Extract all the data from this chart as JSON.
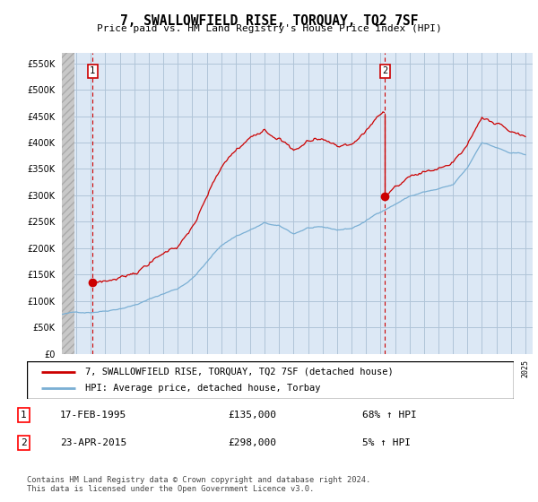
{
  "title": "7, SWALLOWFIELD RISE, TORQUAY, TQ2 7SF",
  "subtitle": "Price paid vs. HM Land Registry's House Price Index (HPI)",
  "legend_line1": "7, SWALLOWFIELD RISE, TORQUAY, TQ2 7SF (detached house)",
  "legend_line2": "HPI: Average price, detached house, Torbay",
  "annotation1_date": "17-FEB-1995",
  "annotation1_price": "£135,000",
  "annotation1_hpi": "68% ↑ HPI",
  "annotation2_date": "23-APR-2015",
  "annotation2_price": "£298,000",
  "annotation2_hpi": "5% ↑ HPI",
  "footer": "Contains HM Land Registry data © Crown copyright and database right 2024.\nThis data is licensed under the Open Government Licence v3.0.",
  "ylim": [
    0,
    570000
  ],
  "yticks": [
    0,
    50000,
    100000,
    150000,
    200000,
    250000,
    300000,
    350000,
    400000,
    450000,
    500000,
    550000
  ],
  "bg_color": "#dce8f5",
  "grid_color": "#b0c4d8",
  "red_color": "#cc0000",
  "blue_color": "#7aafd4",
  "marker1_x": 1995.12,
  "marker1_y": 135000,
  "marker2_x": 2015.31,
  "marker2_y": 298000,
  "vline1_x": 1995.12,
  "vline2_x": 2015.31,
  "xlim_left": 1993.0,
  "xlim_right": 2025.5,
  "hatch_end": 1993.85
}
